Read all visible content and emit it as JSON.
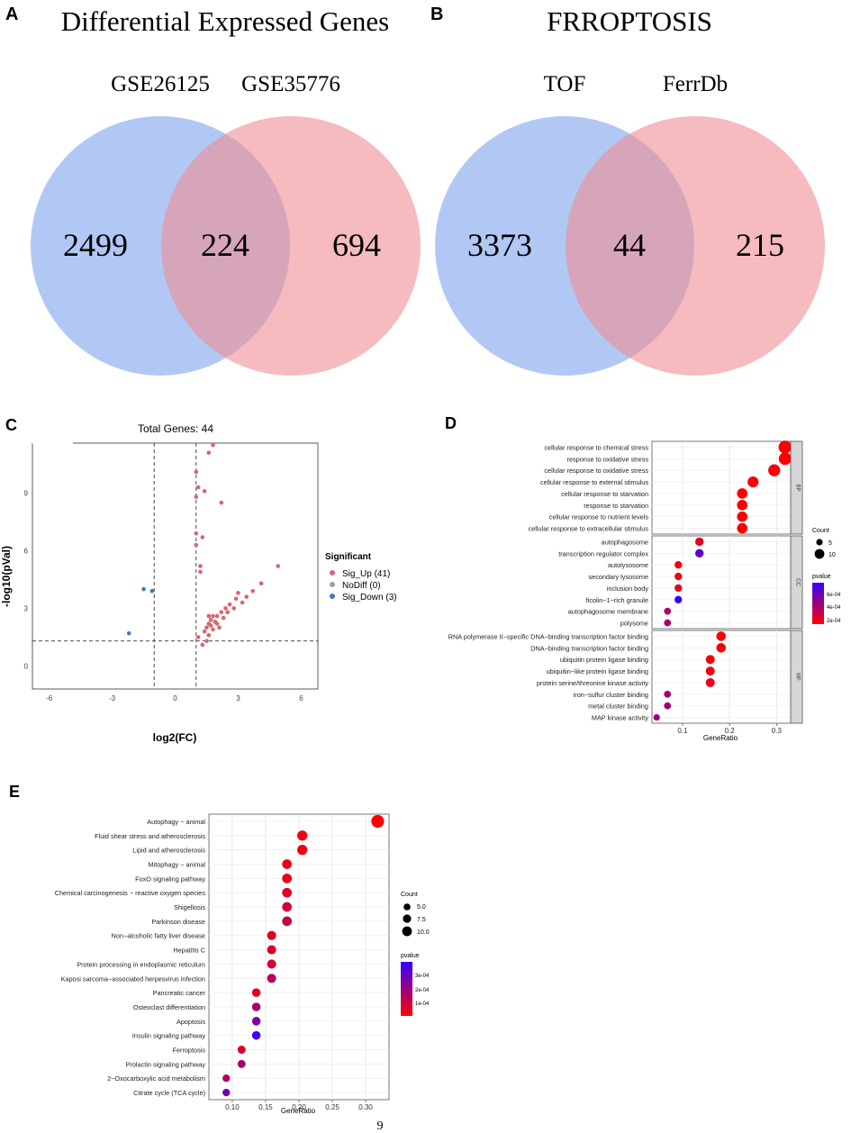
{
  "panel_labels": [
    "A",
    "B",
    "C",
    "D",
    "E"
  ],
  "page_number": "9",
  "colors": {
    "venn_left": "#7ea4ec",
    "venn_right": "#f08e92",
    "sig_up": "#d9656e",
    "sig_down": "#3f7cc0",
    "nodiff": "#a0a0a0",
    "pvalue_low": "#ff0000",
    "pvalue_high": "#3300ff"
  },
  "chart_data": [
    {
      "type": "venn",
      "id": "A",
      "title": "Differential Expressed Genes",
      "sets": [
        "GSE26125",
        "GSE35776"
      ],
      "values": {
        "left_only": "2499",
        "intersection": "224",
        "right_only": "694"
      }
    },
    {
      "type": "venn",
      "id": "B",
      "title": "FRROPTOSIS",
      "sets": [
        "TOF",
        "FerrDb"
      ],
      "values": {
        "left_only": "3373",
        "intersection": "44",
        "right_only": "215"
      }
    },
    {
      "type": "scatter",
      "id": "C",
      "title": "Total Genes: 44",
      "xlabel": "log2(FC)",
      "ylabel": "-log10(pVal)",
      "xlim": [
        -6.8,
        6.8
      ],
      "ylim": [
        -1.2,
        11.6
      ],
      "xticks": [
        "-6",
        "-3",
        "0",
        "3",
        "6"
      ],
      "yticks": [
        "0",
        "3",
        "6",
        "9"
      ],
      "thresholds": {
        "fc": [
          -1,
          1
        ],
        "p": 1.3
      },
      "legend": {
        "title": "Significant",
        "items": [
          "Sig_Up (41)",
          "NoDiff (0)",
          "Sig_Down (3)"
        ]
      },
      "series": [
        {
          "name": "Sig_Up",
          "points": [
            [
              1.8,
              11.5
            ],
            [
              1.6,
              11.1
            ],
            [
              1.0,
              10.1
            ],
            [
              1.1,
              9.3
            ],
            [
              1.4,
              9.1
            ],
            [
              1.0,
              8.8
            ],
            [
              2.2,
              8.5
            ],
            [
              1.0,
              6.9
            ],
            [
              1.3,
              6.7
            ],
            [
              1.0,
              6.3
            ],
            [
              1.2,
              5.2
            ],
            [
              1.2,
              4.9
            ],
            [
              4.9,
              5.2
            ],
            [
              4.1,
              4.3
            ],
            [
              3.7,
              3.9
            ],
            [
              3.0,
              3.8
            ],
            [
              3.4,
              3.6
            ],
            [
              2.9,
              3.5
            ],
            [
              3.2,
              3.3
            ],
            [
              2.6,
              3.2
            ],
            [
              2.8,
              3.0
            ],
            [
              2.4,
              3.0
            ],
            [
              2.5,
              2.8
            ],
            [
              2.2,
              2.8
            ],
            [
              2.0,
              2.6
            ],
            [
              1.8,
              2.6
            ],
            [
              1.6,
              2.6
            ],
            [
              1.7,
              2.4
            ],
            [
              2.3,
              2.5
            ],
            [
              1.9,
              2.3
            ],
            [
              1.6,
              2.2
            ],
            [
              1.7,
              2.1
            ],
            [
              2.0,
              2.2
            ],
            [
              1.5,
              2.0
            ],
            [
              1.8,
              1.9
            ],
            [
              2.1,
              2.0
            ],
            [
              1.4,
              1.8
            ],
            [
              1.6,
              1.6
            ],
            [
              1.1,
              1.5
            ],
            [
              1.5,
              1.3
            ],
            [
              1.3,
              1.1
            ]
          ]
        },
        {
          "name": "Sig_Down",
          "points": [
            [
              -1.5,
              4.0
            ],
            [
              -1.1,
              3.9
            ],
            [
              -2.2,
              1.7
            ]
          ]
        }
      ]
    },
    {
      "type": "dot",
      "id": "D",
      "xlabel": "GeneRatio",
      "xlim": [
        0.035,
        0.33
      ],
      "xticks": [
        0.1,
        0.2,
        0.3
      ],
      "xtick_labels": [
        "0.1",
        "0.2",
        "0.3"
      ],
      "count_legend": {
        "title": "Count",
        "labels": [
          "5",
          "10"
        ],
        "values": [
          5,
          10
        ]
      },
      "pvalue_legend": {
        "title": "pvalue",
        "labels": [
          "6e-04",
          "4e-04",
          "2e-04"
        ],
        "max": 0.0007
      },
      "facets": [
        {
          "name": "BP",
          "terms": [
            {
              "term": "cellular response to chemical stress",
              "ratio": 0.318,
              "count": 15,
              "p": 1e-05
            },
            {
              "term": "response to oxidative stress",
              "ratio": 0.318,
              "count": 14,
              "p": 1e-05
            },
            {
              "term": "cellular response to oxidative stress",
              "ratio": 0.295,
              "count": 13,
              "p": 1e-05
            },
            {
              "term": "cellular response to external stimulus",
              "ratio": 0.25,
              "count": 11,
              "p": 2e-05
            },
            {
              "term": "cellular response to starvation",
              "ratio": 0.227,
              "count": 10,
              "p": 1e-05
            },
            {
              "term": "response to starvation",
              "ratio": 0.227,
              "count": 10,
              "p": 2e-05
            },
            {
              "term": "cellular response to nutrient levels",
              "ratio": 0.227,
              "count": 10,
              "p": 2e-05
            },
            {
              "term": "cellular response to extracellular stimulus",
              "ratio": 0.227,
              "count": 10,
              "p": 2e-05
            }
          ]
        },
        {
          "name": "CC",
          "terms": [
            {
              "term": "autophagosome",
              "ratio": 0.136,
              "count": 6,
              "p": 0.0001
            },
            {
              "term": "transcription regulator complex",
              "ratio": 0.136,
              "count": 6,
              "p": 0.00055
            },
            {
              "term": "autolysosome",
              "ratio": 0.091,
              "count": 4,
              "p": 5e-05
            },
            {
              "term": "secondary lysosome",
              "ratio": 0.091,
              "count": 4,
              "p": 6e-05
            },
            {
              "term": "inclusion body",
              "ratio": 0.091,
              "count": 4,
              "p": 8e-05
            },
            {
              "term": "ficolin−1−rich granule",
              "ratio": 0.091,
              "count": 4,
              "p": 0.0007
            },
            {
              "term": "autophagosome membrane",
              "ratio": 0.068,
              "count": 3,
              "p": 0.00025
            },
            {
              "term": "polysome",
              "ratio": 0.068,
              "count": 3,
              "p": 0.0003
            }
          ]
        },
        {
          "name": "MF",
          "terms": [
            {
              "term": "RNA polymerase II−specific DNA−binding transcription factor binding",
              "ratio": 0.182,
              "count": 8,
              "p": 1e-05
            },
            {
              "term": "DNA−binding transcription factor binding",
              "ratio": 0.182,
              "count": 8,
              "p": 2e-05
            },
            {
              "term": "ubiquitin protein ligase binding",
              "ratio": 0.159,
              "count": 7,
              "p": 4e-05
            },
            {
              "term": "ubiquitin−like protein ligase binding",
              "ratio": 0.159,
              "count": 7,
              "p": 5e-05
            },
            {
              "term": "protein serine/threonine kinase activity",
              "ratio": 0.159,
              "count": 7,
              "p": 6e-05
            },
            {
              "term": "iron−sulfur cluster binding",
              "ratio": 0.068,
              "count": 3,
              "p": 0.0003
            },
            {
              "term": "metal cluster binding",
              "ratio": 0.068,
              "count": 3,
              "p": 0.00032
            },
            {
              "term": "MAP kinase activity",
              "ratio": 0.045,
              "count": 2,
              "p": 0.00035
            }
          ]
        }
      ]
    },
    {
      "type": "dot",
      "id": "E",
      "xlabel": "GeneRatio",
      "xlim": [
        0.065,
        0.335
      ],
      "xticks": [
        0.1,
        0.15,
        0.2,
        0.25,
        0.3
      ],
      "xtick_labels": [
        "0.10",
        "0.15",
        "0.20",
        "0.25",
        "0.30"
      ],
      "count_legend": {
        "title": "Count",
        "labels": [
          "5.0",
          "7.5",
          "10.0"
        ],
        "values": [
          5,
          7.5,
          10
        ]
      },
      "pvalue_legend": {
        "title": "pvalue",
        "labels": [
          "3e-04",
          "2e-04",
          "1e-04"
        ],
        "max": 0.00035
      },
      "terms": [
        {
          "term": "Autophagy − animal",
          "ratio": 0.318,
          "count": 14,
          "p": 1e-05
        },
        {
          "term": "Fluid shear stress and atherosclerosis",
          "ratio": 0.205,
          "count": 9,
          "p": 2e-05
        },
        {
          "term": "Lipid and atherosclerosis",
          "ratio": 0.205,
          "count": 9,
          "p": 2e-05
        },
        {
          "term": "Mitophagy − animal",
          "ratio": 0.182,
          "count": 8,
          "p": 3e-05
        },
        {
          "term": "FoxO signaling pathway",
          "ratio": 0.182,
          "count": 8,
          "p": 4e-05
        },
        {
          "term": "Chemical carcinogenesis − reactive oxygen species",
          "ratio": 0.182,
          "count": 8,
          "p": 5e-05
        },
        {
          "term": "Shigellosis",
          "ratio": 0.182,
          "count": 8,
          "p": 8e-05
        },
        {
          "term": "Parkinson disease",
          "ratio": 0.182,
          "count": 8,
          "p": 0.0001
        },
        {
          "term": "Non−alcoholic fatty liver disease",
          "ratio": 0.159,
          "count": 7,
          "p": 6e-05
        },
        {
          "term": "Hepatitis C",
          "ratio": 0.159,
          "count": 7,
          "p": 6e-05
        },
        {
          "term": "Protein processing in endoplasmic reticulum",
          "ratio": 0.159,
          "count": 7,
          "p": 7e-05
        },
        {
          "term": "Kaposi sarcoma−associated herpesvirus infection",
          "ratio": 0.159,
          "count": 7,
          "p": 0.00012
        },
        {
          "term": "Pancreatic cancer",
          "ratio": 0.136,
          "count": 6,
          "p": 5e-05
        },
        {
          "term": "Osteoclast differentiation",
          "ratio": 0.136,
          "count": 6,
          "p": 0.00015
        },
        {
          "term": "Apoptosis",
          "ratio": 0.136,
          "count": 6,
          "p": 0.00022
        },
        {
          "term": "Insulin signaling pathway",
          "ratio": 0.136,
          "count": 6,
          "p": 0.00033
        },
        {
          "term": "Ferroptosis",
          "ratio": 0.114,
          "count": 5,
          "p": 6e-05
        },
        {
          "term": "Prolactin signaling pathway",
          "ratio": 0.114,
          "count": 5,
          "p": 0.00015
        },
        {
          "term": "2−Oxocarboxylic acid metabolism",
          "ratio": 0.091,
          "count": 4,
          "p": 0.00012
        },
        {
          "term": "Citrate cycle (TCA cycle)",
          "ratio": 0.091,
          "count": 4,
          "p": 0.00024
        }
      ]
    }
  ]
}
